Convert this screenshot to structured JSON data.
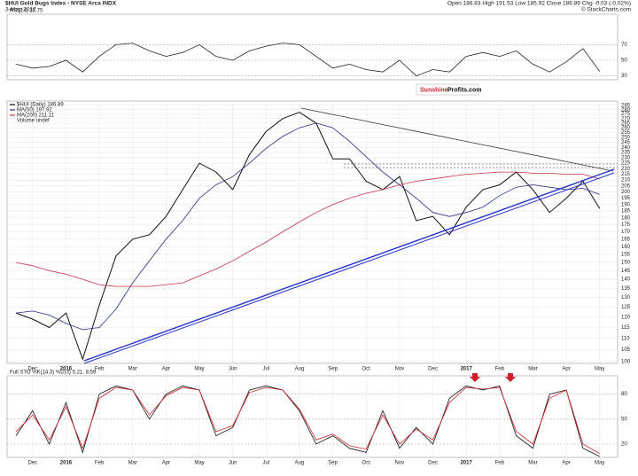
{
  "header": {
    "title": "$HUI Gold Bugs Index - NYSE Arca INDX",
    "date": "3-May-2017",
    "quote": "Open 186.83  High 191.53  Low 185.92  Close 186.89  Chg -0.03 (-0.02%)",
    "credit": "© StockCharts.com"
  },
  "watermark": {
    "left": "Sunshine",
    "right": "Profits.com"
  },
  "chart_data": [
    {
      "type": "line",
      "title": "RSI(14) 35.75",
      "series": [
        {
          "color": "#222222",
          "values": [
            45,
            40,
            42,
            50,
            35,
            55,
            70,
            72,
            62,
            55,
            60,
            70,
            55,
            50,
            62,
            68,
            72,
            70,
            55,
            40,
            45,
            38,
            35,
            50,
            30,
            38,
            35,
            55,
            60,
            55,
            62,
            45,
            35,
            48,
            65,
            35.75
          ]
        }
      ],
      "ylim": [
        25,
        109
      ],
      "yticks": [
        30,
        50,
        70
      ],
      "grid": true
    },
    {
      "type": "line",
      "log_scale": true,
      "categories": [
        null,
        "Dec",
        null,
        "2016",
        null,
        "Feb",
        null,
        "Mar",
        null,
        "Apr",
        null,
        "May",
        null,
        "Jun",
        null,
        "Jul",
        null,
        "Aug",
        null,
        "Sep",
        null,
        "Oct",
        null,
        "Nov",
        null,
        "Dec",
        null,
        "2017",
        null,
        "Feb",
        null,
        "Mar",
        null,
        "Apr",
        null,
        "May"
      ],
      "series": [
        {
          "name": "$HUI (Daily) 186.89",
          "color": "#111111",
          "values": [
            122,
            119,
            115,
            122,
            101,
            126,
            154,
            165,
            168,
            181,
            202,
            225,
            217,
            202,
            233,
            256,
            270,
            277,
            265,
            229,
            229,
            209,
            202,
            213,
            178,
            181,
            168,
            188,
            202,
            206,
            217,
            202,
            184,
            195,
            209,
            187
          ]
        },
        {
          "name": "MA(50) 197.92",
          "color": "#2b2b8c",
          "values": [
            122,
            123,
            121,
            117,
            114,
            115,
            124,
            138,
            151,
            165,
            178,
            195,
            206,
            213,
            225,
            239,
            251,
            260,
            265,
            260,
            246,
            231,
            217,
            206,
            195,
            184,
            181,
            184,
            188,
            197,
            204,
            206,
            204,
            202,
            203,
            198
          ]
        },
        {
          "name": "MA(200) 211.11",
          "color": "#c8324a",
          "values": [
            150,
            148,
            145,
            143,
            140,
            137,
            136,
            136,
            136,
            137,
            138,
            142,
            146,
            151,
            157,
            163,
            170,
            177,
            184,
            190,
            195,
            199,
            202,
            206,
            209,
            211,
            213,
            215,
            216,
            217,
            217,
            216,
            216,
            215,
            215,
            211
          ]
        }
      ],
      "volume_label": "Volume undef",
      "ylim": [
        99.3,
        290
      ],
      "yticks": [
        100,
        105,
        110,
        115,
        120,
        125,
        130,
        135,
        140,
        145,
        150,
        155,
        160,
        165,
        170,
        175,
        180,
        185,
        190,
        195,
        200,
        205,
        210,
        215,
        220,
        225,
        230,
        235,
        240,
        245,
        250,
        255,
        260,
        265,
        270,
        275,
        280,
        285
      ],
      "grid": true
    },
    {
      "type": "line",
      "title": "Full STO %K(14,3) %D(3) 5.21, 8.59",
      "categories": [
        null,
        "Dec",
        null,
        "2016",
        null,
        "Feb",
        null,
        "Mar",
        null,
        "Apr",
        null,
        "May",
        null,
        "Jun",
        null,
        "Jul",
        null,
        "Aug",
        null,
        "Sep",
        null,
        "Oct",
        null,
        "Nov",
        null,
        "Dec",
        null,
        "2017",
        null,
        "Feb",
        null,
        "Mar",
        null,
        "Apr",
        null,
        "May"
      ],
      "series": [
        {
          "color": "#111111",
          "values": [
            30,
            60,
            20,
            70,
            10,
            80,
            90,
            85,
            50,
            80,
            90,
            85,
            30,
            40,
            85,
            90,
            85,
            60,
            20,
            30,
            15,
            10,
            60,
            15,
            40,
            20,
            75,
            90,
            85,
            90,
            30,
            15,
            80,
            85,
            15,
            5.21
          ]
        },
        {
          "color": "#d0202a",
          "values": [
            35,
            55,
            25,
            65,
            15,
            75,
            88,
            85,
            55,
            78,
            88,
            85,
            35,
            42,
            82,
            88,
            85,
            62,
            25,
            32,
            18,
            14,
            55,
            20,
            38,
            25,
            70,
            88,
            86,
            88,
            35,
            20,
            75,
            85,
            20,
            8.59
          ]
        }
      ],
      "ylim": [
        4,
        102
      ],
      "yticks": [
        20,
        50,
        80
      ],
      "grid": true
    }
  ]
}
